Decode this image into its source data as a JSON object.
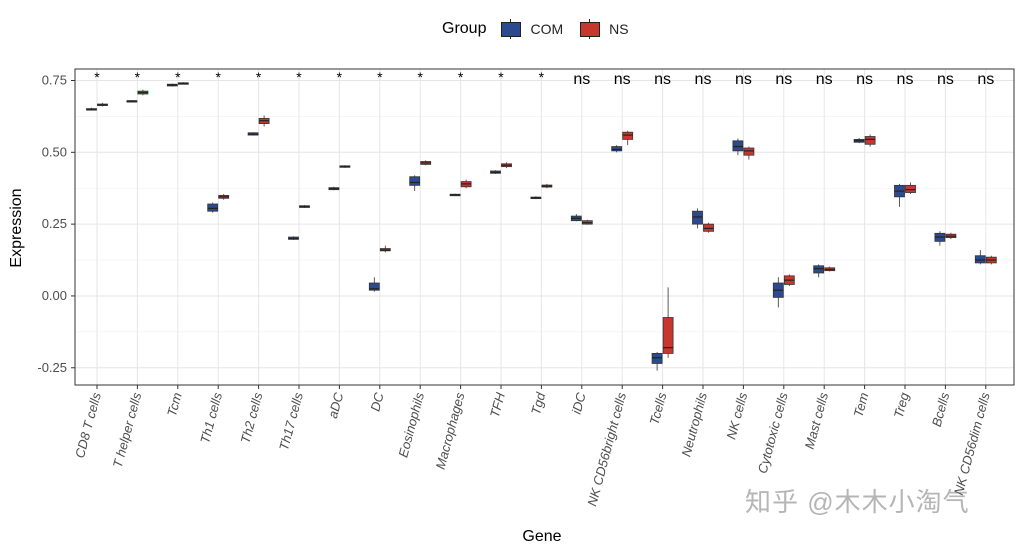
{
  "chart_data": {
    "type": "boxplot",
    "title": "",
    "xlabel": "Gene",
    "ylabel": "Expression",
    "ylim": [
      -0.31,
      0.79
    ],
    "yticks": [
      -0.25,
      0,
      0.25,
      0.5,
      0.75
    ],
    "ytick_labels": [
      "-0.25",
      "0.00",
      "0.25",
      "0.50",
      "0.75"
    ],
    "grid": true,
    "legend": {
      "title": "Group",
      "position": "top"
    },
    "series": [
      {
        "name": "COM",
        "color": "#2C4A8F"
      },
      {
        "name": "NS",
        "color": "#C8372D"
      }
    ],
    "categories": [
      "CD8 T cells",
      "T helper cells",
      "Tcm",
      "Th1 cells",
      "Th2 cells",
      "Th17 cells",
      "aDC",
      "DC",
      "Eosinophils",
      "Macrophages",
      "TFH",
      "Tgd",
      "iDC",
      "NK CD56bright cells",
      "Tcells",
      "Neutrophils",
      "NK cells",
      "Cytotoxic cells",
      "Mast cells",
      "Tem",
      "Treg",
      "Bcells",
      "NK CD56dim cells"
    ],
    "significance": [
      "*",
      "*",
      "*",
      "*",
      "*",
      "*",
      "*",
      "*",
      "*",
      "*",
      "*",
      "*",
      "ns",
      "ns",
      "ns",
      "ns",
      "ns",
      "ns",
      "ns",
      "ns",
      "ns",
      "ns",
      "ns"
    ],
    "boxes": [
      {
        "COM": [
          0.645,
          0.648,
          0.65,
          0.652,
          0.655
        ],
        "NS": [
          0.66,
          0.663,
          0.665,
          0.668,
          0.672
        ]
      },
      {
        "COM": [
          0.674,
          0.676,
          0.678,
          0.68,
          0.682
        ],
        "NS": [
          0.698,
          0.703,
          0.708,
          0.713,
          0.718
        ]
      },
      {
        "COM": [
          0.729,
          0.731,
          0.734,
          0.737,
          0.739
        ],
        "NS": [
          0.736,
          0.738,
          0.74,
          0.742,
          0.744
        ]
      },
      {
        "COM": [
          0.29,
          0.295,
          0.305,
          0.32,
          0.325
        ],
        "NS": [
          0.335,
          0.34,
          0.345,
          0.35,
          0.355
        ]
      },
      {
        "COM": [
          0.558,
          0.56,
          0.563,
          0.568,
          0.57
        ],
        "NS": [
          0.59,
          0.6,
          0.61,
          0.618,
          0.628
        ]
      },
      {
        "COM": [
          0.195,
          0.197,
          0.2,
          0.205,
          0.208
        ],
        "NS": [
          0.306,
          0.308,
          0.311,
          0.314,
          0.316
        ]
      },
      {
        "COM": [
          0.368,
          0.37,
          0.373,
          0.377,
          0.38
        ],
        "NS": [
          0.446,
          0.448,
          0.45,
          0.453,
          0.455
        ]
      },
      {
        "COM": [
          0.015,
          0.02,
          0.025,
          0.045,
          0.065
        ],
        "NS": [
          0.152,
          0.157,
          0.16,
          0.165,
          0.175
        ]
      },
      {
        "COM": [
          0.365,
          0.385,
          0.395,
          0.415,
          0.42
        ],
        "NS": [
          0.455,
          0.458,
          0.463,
          0.468,
          0.472
        ]
      },
      {
        "COM": [
          0.35,
          0.351,
          0.352,
          0.354,
          0.356
        ],
        "NS": [
          0.375,
          0.38,
          0.39,
          0.398,
          0.405
        ]
      },
      {
        "COM": [
          0.425,
          0.427,
          0.43,
          0.435,
          0.438
        ],
        "NS": [
          0.445,
          0.45,
          0.455,
          0.46,
          0.465
        ]
      },
      {
        "COM": [
          0.337,
          0.339,
          0.342,
          0.344,
          0.347
        ],
        "NS": [
          0.375,
          0.379,
          0.382,
          0.386,
          0.39
        ]
      },
      {
        "COM": [
          0.26,
          0.262,
          0.27,
          0.278,
          0.285
        ],
        "NS": [
          0.248,
          0.25,
          0.255,
          0.262,
          0.265
        ]
      },
      {
        "COM": [
          0.5,
          0.505,
          0.51,
          0.52,
          0.525
        ],
        "NS": [
          0.525,
          0.545,
          0.56,
          0.57,
          0.575
        ]
      },
      {
        "COM": [
          -0.26,
          -0.235,
          -0.215,
          -0.2,
          -0.195
        ],
        "NS": [
          -0.215,
          -0.2,
          -0.18,
          -0.075,
          0.03
        ]
      },
      {
        "COM": [
          0.235,
          0.25,
          0.275,
          0.295,
          0.305
        ],
        "NS": [
          0.22,
          0.225,
          0.235,
          0.25,
          0.255
        ]
      },
      {
        "COM": [
          0.49,
          0.505,
          0.52,
          0.54,
          0.548
        ],
        "NS": [
          0.475,
          0.49,
          0.505,
          0.515,
          0.52
        ]
      },
      {
        "COM": [
          -0.04,
          -0.005,
          0.02,
          0.045,
          0.065
        ],
        "NS": [
          0.035,
          0.04,
          0.055,
          0.07,
          0.075
        ]
      },
      {
        "COM": [
          0.065,
          0.08,
          0.095,
          0.105,
          0.11
        ],
        "NS": [
          0.085,
          0.088,
          0.092,
          0.098,
          0.102
        ]
      },
      {
        "COM": [
          0.532,
          0.535,
          0.54,
          0.545,
          0.55
        ],
        "NS": [
          0.52,
          0.528,
          0.545,
          0.555,
          0.562
        ]
      },
      {
        "COM": [
          0.31,
          0.345,
          0.365,
          0.385,
          0.39
        ],
        "NS": [
          0.355,
          0.36,
          0.37,
          0.385,
          0.395
        ]
      },
      {
        "COM": [
          0.175,
          0.19,
          0.205,
          0.218,
          0.225
        ],
        "NS": [
          0.198,
          0.203,
          0.208,
          0.215,
          0.22
        ]
      },
      {
        "COM": [
          0.11,
          0.115,
          0.125,
          0.14,
          0.16
        ],
        "NS": [
          0.11,
          0.115,
          0.125,
          0.135,
          0.14
        ]
      }
    ],
    "box_format": "[min, q1, median, q3, max]"
  },
  "watermark": "知乎 @木木小淘气"
}
